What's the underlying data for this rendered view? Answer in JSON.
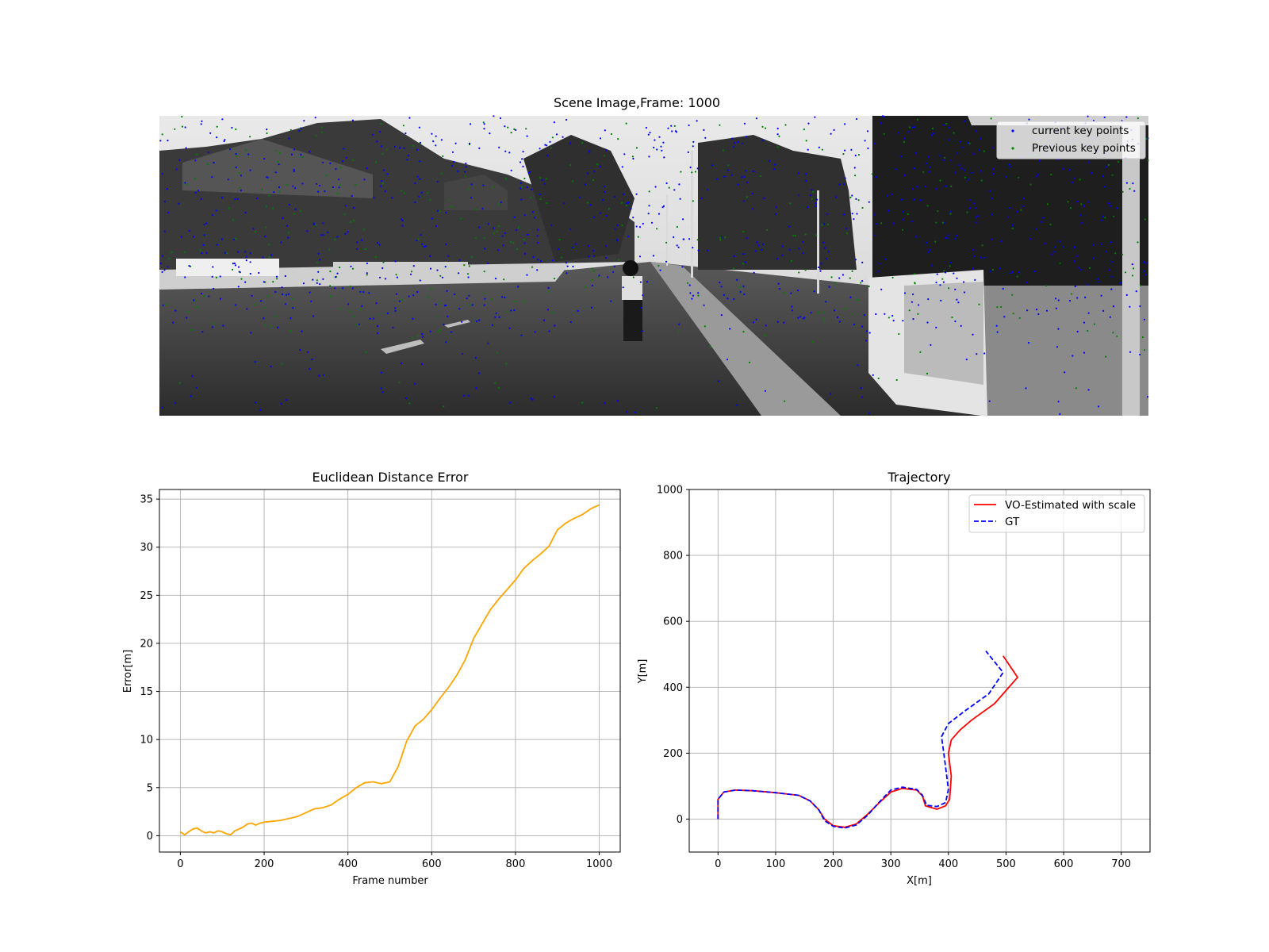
{
  "scene": {
    "title": "Scene Image,Frame: 1000",
    "legend": [
      {
        "label": "current key points",
        "color": "#0000ff"
      },
      {
        "label": "Previous key points",
        "color": "#008000"
      }
    ],
    "image_description": "grayscale street scene with keypoint overlay"
  },
  "chart_data": [
    {
      "type": "line",
      "title": "Euclidean Distance Error",
      "xlabel": "Frame number",
      "ylabel": "Error[m]",
      "xlim": [
        -50,
        1050
      ],
      "ylim": [
        -1.7,
        36
      ],
      "xticks": [
        0,
        200,
        400,
        600,
        800,
        1000
      ],
      "yticks": [
        0,
        5,
        10,
        15,
        20,
        25,
        30,
        35
      ],
      "grid": true,
      "series": [
        {
          "color": "#ffa500",
          "x": [
            0,
            10,
            20,
            30,
            40,
            50,
            60,
            70,
            80,
            90,
            100,
            110,
            120,
            130,
            140,
            150,
            160,
            170,
            180,
            190,
            200,
            220,
            240,
            260,
            280,
            300,
            320,
            340,
            360,
            380,
            400,
            420,
            440,
            460,
            480,
            500,
            520,
            540,
            560,
            580,
            600,
            620,
            640,
            660,
            680,
            700,
            720,
            740,
            760,
            780,
            800,
            820,
            840,
            860,
            880,
            900,
            920,
            940,
            960,
            980,
            1000
          ],
          "y": [
            0.4,
            0.1,
            0.4,
            0.7,
            0.8,
            0.5,
            0.3,
            0.4,
            0.3,
            0.5,
            0.4,
            0.2,
            0.1,
            0.5,
            0.7,
            0.9,
            1.2,
            1.3,
            1.1,
            1.3,
            1.4,
            1.5,
            1.6,
            1.8,
            2.0,
            2.4,
            2.8,
            2.9,
            3.2,
            3.8,
            4.3,
            5.0,
            5.5,
            5.6,
            5.4,
            5.6,
            7.2,
            9.8,
            11.4,
            12.1,
            13.1,
            14.3,
            15.4,
            16.7,
            18.3,
            20.5,
            22.0,
            23.5,
            24.6,
            25.6,
            26.6,
            27.8,
            28.6,
            29.3,
            30.1,
            31.8,
            32.5,
            33.0,
            33.4,
            34.0,
            34.4
          ]
        }
      ]
    },
    {
      "type": "line",
      "title": "Trajectory",
      "xlabel": "X[m]",
      "ylabel": "Y[m]",
      "xlim": [
        -50,
        750
      ],
      "ylim": [
        -100,
        1000
      ],
      "xticks": [
        0,
        100,
        200,
        300,
        400,
        500,
        600,
        700
      ],
      "yticks": [
        0,
        200,
        400,
        600,
        800,
        1000
      ],
      "grid": true,
      "legend_position": "top-right",
      "series": [
        {
          "name": "VO-Estimated with scale",
          "color": "#ff0000",
          "style": "solid",
          "points": [
            [
              0,
              0
            ],
            [
              0,
              60
            ],
            [
              10,
              82
            ],
            [
              30,
              88
            ],
            [
              60,
              86
            ],
            [
              100,
              80
            ],
            [
              140,
              72
            ],
            [
              160,
              55
            ],
            [
              175,
              28
            ],
            [
              185,
              0
            ],
            [
              200,
              -20
            ],
            [
              220,
              -25
            ],
            [
              240,
              -15
            ],
            [
              260,
              15
            ],
            [
              280,
              50
            ],
            [
              300,
              82
            ],
            [
              320,
              93
            ],
            [
              345,
              88
            ],
            [
              355,
              70
            ],
            [
              360,
              40
            ],
            [
              380,
              30
            ],
            [
              395,
              40
            ],
            [
              402,
              60
            ],
            [
              405,
              130
            ],
            [
              400,
              200
            ],
            [
              405,
              240
            ],
            [
              420,
              270
            ],
            [
              440,
              300
            ],
            [
              480,
              350
            ],
            [
              520,
              430
            ],
            [
              495,
              495
            ]
          ]
        },
        {
          "name": "GT",
          "color": "#0000ff",
          "style": "dashed",
          "points": [
            [
              0,
              0
            ],
            [
              0,
              60
            ],
            [
              10,
              82
            ],
            [
              30,
              88
            ],
            [
              60,
              86
            ],
            [
              100,
              80
            ],
            [
              140,
              72
            ],
            [
              160,
              55
            ],
            [
              175,
              28
            ],
            [
              185,
              -5
            ],
            [
              200,
              -22
            ],
            [
              220,
              -27
            ],
            [
              240,
              -18
            ],
            [
              260,
              12
            ],
            [
              280,
              52
            ],
            [
              300,
              88
            ],
            [
              320,
              97
            ],
            [
              345,
              90
            ],
            [
              355,
              72
            ],
            [
              362,
              42
            ],
            [
              380,
              38
            ],
            [
              395,
              50
            ],
            [
              400,
              90
            ],
            [
              392,
              200
            ],
            [
              388,
              250
            ],
            [
              400,
              290
            ],
            [
              430,
              330
            ],
            [
              470,
              380
            ],
            [
              495,
              445
            ],
            [
              465,
              510
            ]
          ]
        }
      ]
    }
  ]
}
